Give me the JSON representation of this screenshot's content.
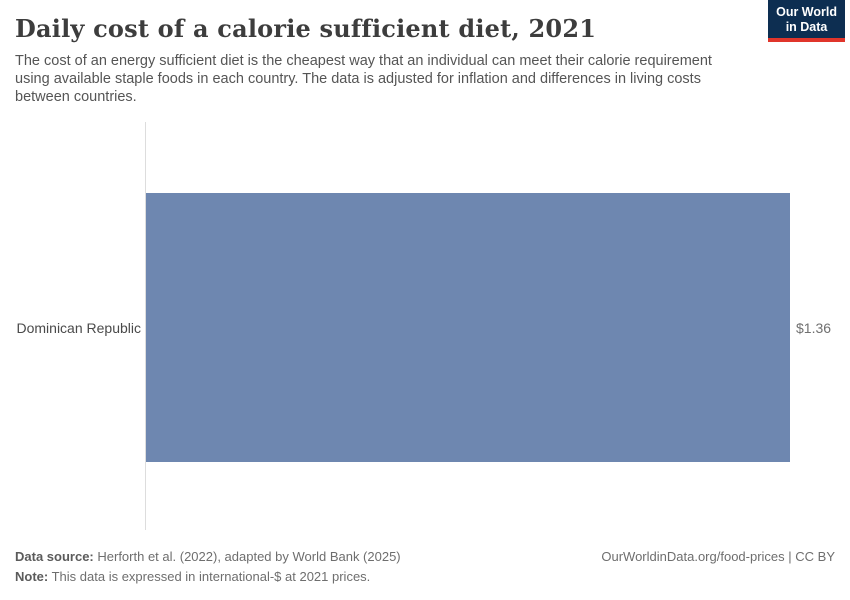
{
  "header": {
    "title": "Daily cost of a calorie sufficient diet, 2021",
    "subtitle": "The cost of an energy sufficient diet is the cheapest way that an individual can meet their calorie requirement using available staple foods in each country. The data is adjusted for inflation and differences in living costs between countries.",
    "logo": {
      "line1": "Our World",
      "line2": "in Data",
      "bg_color": "#0d2e51",
      "stripe_color": "#e0352b"
    }
  },
  "chart_data": {
    "type": "bar",
    "orientation": "horizontal",
    "categories": [
      "Dominican Republic"
    ],
    "values": [
      1.36
    ],
    "value_labels": [
      "$1.36"
    ],
    "title": "Daily cost of a calorie sufficient diet, 2021",
    "xlabel": "",
    "ylabel": "",
    "xlim": [
      0,
      1.36
    ],
    "grid": false,
    "legend": false,
    "bar_color": "#6e87b0",
    "axis_line_color": "#dddddd"
  },
  "footer": {
    "source_label": "Data source:",
    "source_text": "Herforth et al. (2022), adapted by World Bank (2025)",
    "note_label": "Note:",
    "note_text": "This data is expressed in international-$ at 2021 prices.",
    "link_text": "OurWorldinData.org/food-prices | CC BY"
  }
}
